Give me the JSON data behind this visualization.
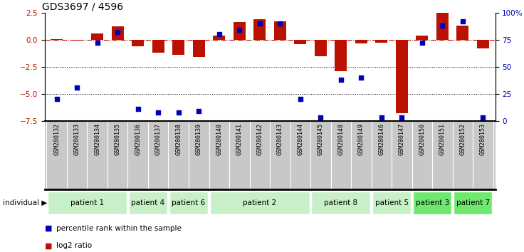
{
  "title": "GDS3697 / 4596",
  "samples": [
    "GSM280132",
    "GSM280133",
    "GSM280134",
    "GSM280135",
    "GSM280136",
    "GSM280137",
    "GSM280138",
    "GSM280139",
    "GSM280140",
    "GSM280141",
    "GSM280142",
    "GSM280143",
    "GSM280144",
    "GSM280145",
    "GSM280148",
    "GSM280149",
    "GSM280146",
    "GSM280147",
    "GSM280150",
    "GSM280151",
    "GSM280152",
    "GSM280153"
  ],
  "log2_ratio": [
    0.05,
    -0.1,
    0.55,
    1.25,
    -0.6,
    -1.2,
    -1.4,
    -1.6,
    0.4,
    1.6,
    1.9,
    1.7,
    -0.4,
    -1.5,
    -2.9,
    -0.35,
    -0.3,
    -6.8,
    0.35,
    2.45,
    1.3,
    -0.8
  ],
  "percentile": [
    20,
    31,
    72,
    82,
    11,
    8,
    8,
    9,
    80,
    84,
    90,
    90,
    20,
    3,
    38,
    40,
    3,
    3,
    72,
    88,
    92,
    3
  ],
  "groups": [
    {
      "label": "patient 1",
      "start": 0,
      "end": 4,
      "color": "#c8f0c8"
    },
    {
      "label": "patient 4",
      "start": 4,
      "end": 6,
      "color": "#c8f0c8"
    },
    {
      "label": "patient 6",
      "start": 6,
      "end": 8,
      "color": "#c8f0c8"
    },
    {
      "label": "patient 2",
      "start": 8,
      "end": 13,
      "color": "#c8f0c8"
    },
    {
      "label": "patient 8",
      "start": 13,
      "end": 16,
      "color": "#c8f0c8"
    },
    {
      "label": "patient 5",
      "start": 16,
      "end": 18,
      "color": "#c8f0c8"
    },
    {
      "label": "patient 3",
      "start": 18,
      "end": 20,
      "color": "#6ee86e"
    },
    {
      "label": "patient 7",
      "start": 20,
      "end": 22,
      "color": "#6ee86e"
    }
  ],
  "ylim_left": [
    -7.5,
    2.5
  ],
  "ylim_right": [
    0,
    100
  ],
  "yticks_left": [
    2.5,
    0,
    -2.5,
    -5.0,
    -7.5
  ],
  "yticks_right": [
    0,
    25,
    50,
    75,
    100
  ],
  "bar_color": "#bb1100",
  "dot_color": "#0000bb",
  "dotted_lines": [
    -2.5,
    -5.0
  ],
  "background_color": "#ffffff",
  "plot_bg": "#ffffff",
  "sample_bg": "#c8c8c8",
  "individual_label": "individual",
  "legend_bar": "log2 ratio",
  "legend_dot": "percentile rank within the sample",
  "bar_width": 0.6
}
